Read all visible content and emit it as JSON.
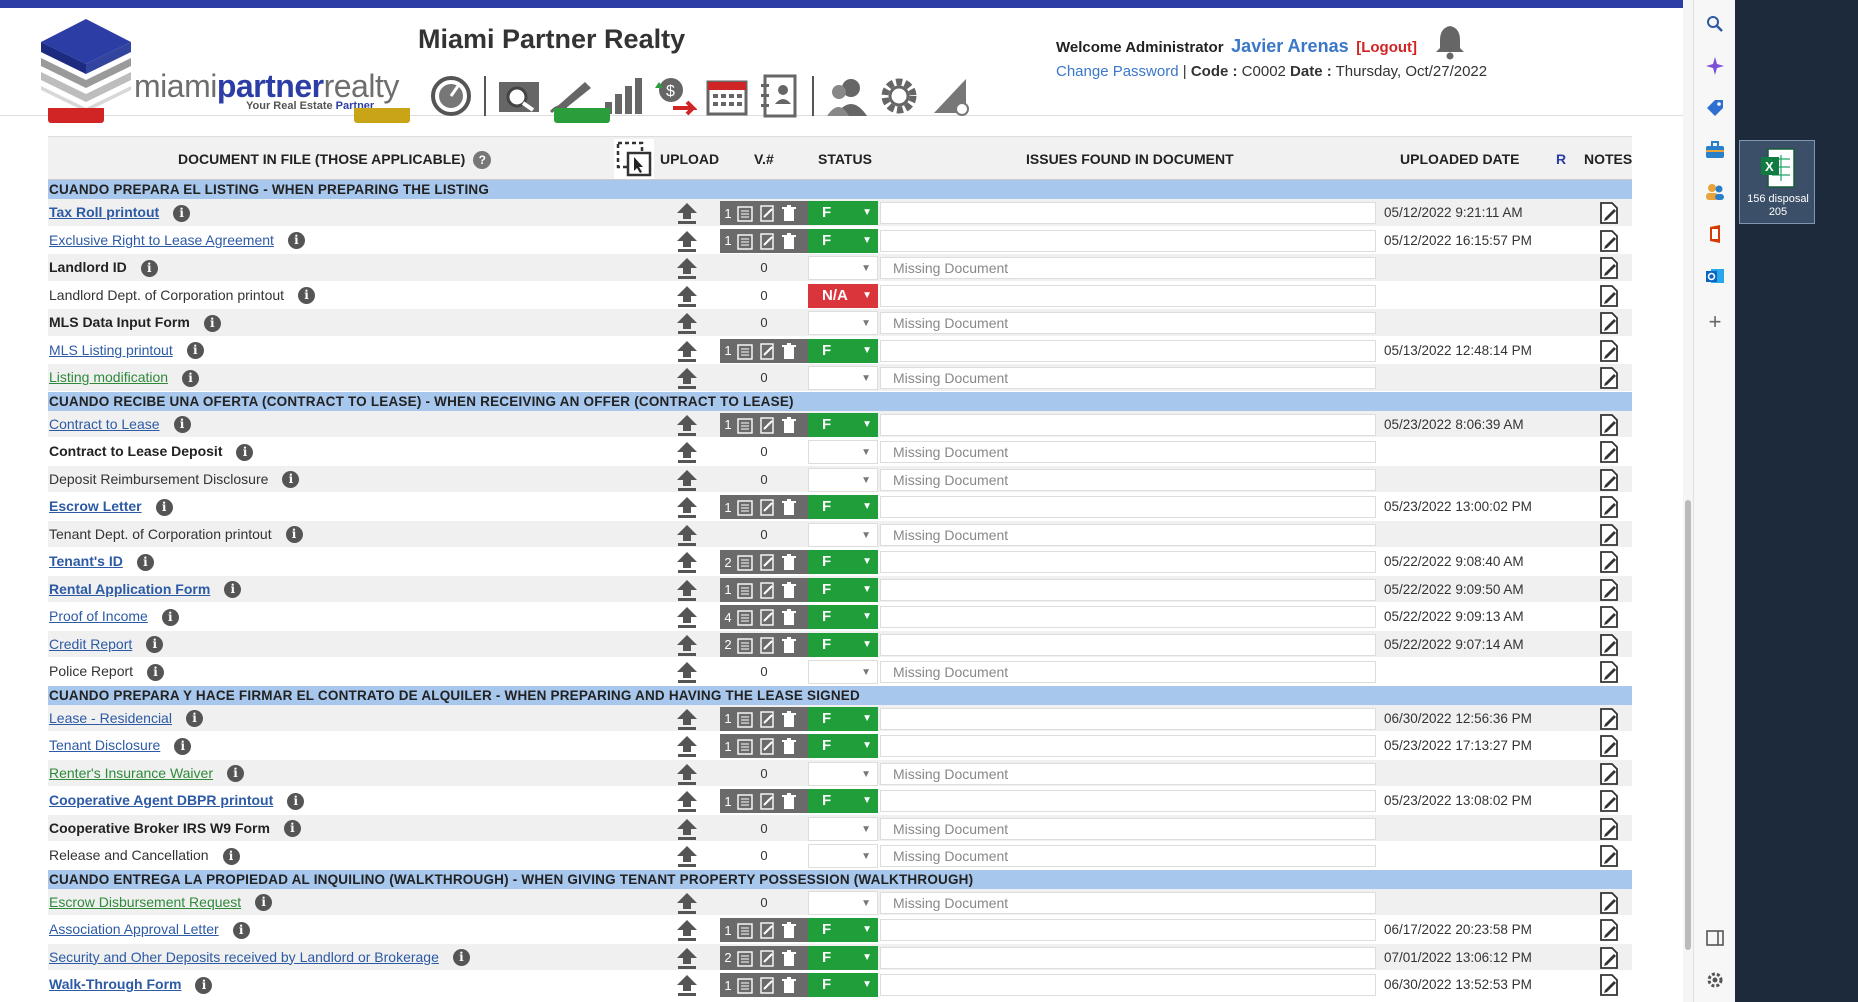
{
  "app": {
    "title": "Miami Partner Realty",
    "logo_text_a": "miami",
    "logo_text_b": "partner",
    "logo_text_c": "realty",
    "logo_tag_a": "Your Real Estate ",
    "logo_tag_b": "Partner"
  },
  "user": {
    "welcome": "Welcome Administrator",
    "name": "Javier Arenas",
    "logout": "[Logout]",
    "change_password": "Change Password",
    "code_label": "Code :",
    "code": "C0002",
    "date_label": "Date :",
    "date": "Thursday, Oct/27/2022"
  },
  "toolbar": [
    "speedometer-icon",
    "search-doc-icon",
    "signature-icon",
    "bar-chart-icon",
    "money-transfer-icon",
    "calendar-icon",
    "contacts-icon",
    "users-icon",
    "gear-icon",
    "settings-triangle-icon"
  ],
  "table": {
    "headers": {
      "document": "DOCUMENT IN FILE (THOSE APPLICABLE)",
      "help": "?",
      "upload": "UPLOAD",
      "version": "V.#",
      "status": "STATUS",
      "issues": "ISSUES FOUND IN DOCUMENT",
      "uploaded": "UPLOADED DATE",
      "r": "R",
      "notes": "NOTES"
    },
    "sections": [
      {
        "title": "CUANDO PREPARA EL LISTING - WHEN PREPARING THE LISTING",
        "rows": [
          {
            "name": "Tax Roll printout",
            "style": "link bold",
            "version": "1",
            "has_doc": true,
            "status": "F",
            "status_color": "green",
            "issues": "",
            "uploaded": "05/12/2022 9:21:11 AM"
          },
          {
            "name": "Exclusive Right to Lease Agreement",
            "style": "link",
            "version": "1",
            "has_doc": true,
            "status": "F",
            "status_color": "green",
            "issues": "",
            "uploaded": "05/12/2022 16:15:57 PM"
          },
          {
            "name": "Landlord ID",
            "style": "bold",
            "version": "0",
            "has_doc": false,
            "status": "",
            "status_color": "empty",
            "issues": "Missing Document",
            "uploaded": ""
          },
          {
            "name": "Landlord Dept. of Corporation printout",
            "style": "plain",
            "version": "0",
            "has_doc": false,
            "status": "N/A",
            "status_color": "red",
            "issues": "",
            "uploaded": ""
          },
          {
            "name": "MLS Data Input Form",
            "style": "bold",
            "version": "0",
            "has_doc": false,
            "status": "",
            "status_color": "empty",
            "issues": "Missing Document",
            "uploaded": ""
          },
          {
            "name": "MLS Listing printout",
            "style": "link",
            "version": "1",
            "has_doc": true,
            "status": "F",
            "status_color": "green",
            "issues": "",
            "uploaded": "05/13/2022 12:48:14 PM"
          },
          {
            "name": "Listing modification",
            "style": "link green",
            "version": "0",
            "has_doc": false,
            "status": "",
            "status_color": "empty",
            "issues": "Missing Document",
            "uploaded": ""
          }
        ]
      },
      {
        "title": "CUANDO RECIBE UNA OFERTA (CONTRACT TO LEASE) - WHEN RECEIVING AN OFFER (CONTRACT TO LEASE)",
        "rows": [
          {
            "name": "Contract to Lease",
            "style": "link",
            "version": "1",
            "has_doc": true,
            "status": "F",
            "status_color": "green",
            "issues": "",
            "uploaded": "05/23/2022 8:06:39 AM"
          },
          {
            "name": "Contract to Lease Deposit",
            "style": "bold",
            "version": "0",
            "has_doc": false,
            "status": "",
            "status_color": "empty",
            "issues": "Missing Document",
            "uploaded": ""
          },
          {
            "name": "Deposit Reimbursement Disclosure",
            "style": "plain",
            "version": "0",
            "has_doc": false,
            "status": "",
            "status_color": "empty",
            "issues": "Missing Document",
            "uploaded": ""
          },
          {
            "name": "Escrow Letter",
            "style": "link bold",
            "version": "1",
            "has_doc": true,
            "status": "F",
            "status_color": "green",
            "issues": "",
            "uploaded": "05/23/2022 13:00:02 PM"
          },
          {
            "name": "Tenant Dept. of Corporation printout",
            "style": "plain",
            "version": "0",
            "has_doc": false,
            "status": "",
            "status_color": "empty",
            "issues": "Missing Document",
            "uploaded": ""
          },
          {
            "name": "Tenant's ID",
            "style": "link bold",
            "version": "2",
            "has_doc": true,
            "status": "F",
            "status_color": "green",
            "issues": "",
            "uploaded": "05/22/2022 9:08:40 AM"
          },
          {
            "name": "Rental Application Form",
            "style": "link bold",
            "version": "1",
            "has_doc": true,
            "status": "F",
            "status_color": "green",
            "issues": "",
            "uploaded": "05/22/2022 9:09:50 AM"
          },
          {
            "name": "Proof of Income",
            "style": "link",
            "version": "4",
            "has_doc": true,
            "status": "F",
            "status_color": "green",
            "issues": "",
            "uploaded": "05/22/2022 9:09:13 AM"
          },
          {
            "name": "Credit Report",
            "style": "link",
            "version": "2",
            "has_doc": true,
            "status": "F",
            "status_color": "green",
            "issues": "",
            "uploaded": "05/22/2022 9:07:14 AM"
          },
          {
            "name": "Police Report",
            "style": "plain",
            "version": "0",
            "has_doc": false,
            "status": "",
            "status_color": "empty",
            "issues": "Missing Document",
            "uploaded": ""
          }
        ]
      },
      {
        "title": "CUANDO PREPARA Y HACE FIRMAR EL CONTRATO DE ALQUILER - WHEN PREPARING AND HAVING THE LEASE SIGNED",
        "rows": [
          {
            "name": "Lease - Residencial",
            "style": "link",
            "version": "1",
            "has_doc": true,
            "status": "F",
            "status_color": "green",
            "issues": "",
            "uploaded": "06/30/2022 12:56:36 PM"
          },
          {
            "name": "Tenant Disclosure",
            "style": "link",
            "version": "1",
            "has_doc": true,
            "status": "F",
            "status_color": "green",
            "issues": "",
            "uploaded": "05/23/2022 17:13:27 PM"
          },
          {
            "name": "Renter's Insurance Waiver",
            "style": "link green",
            "version": "0",
            "has_doc": false,
            "status": "",
            "status_color": "empty",
            "issues": "Missing Document",
            "uploaded": ""
          },
          {
            "name": "Cooperative Agent DBPR printout",
            "style": "link bold",
            "version": "1",
            "has_doc": true,
            "status": "F",
            "status_color": "green",
            "issues": "",
            "uploaded": "05/23/2022 13:08:02 PM"
          },
          {
            "name": "Cooperative Broker IRS W9 Form",
            "style": "bold",
            "version": "0",
            "has_doc": false,
            "status": "",
            "status_color": "empty",
            "issues": "Missing Document",
            "uploaded": ""
          },
          {
            "name": "Release and Cancellation",
            "style": "plain",
            "version": "0",
            "has_doc": false,
            "status": "",
            "status_color": "empty",
            "issues": "Missing Document",
            "uploaded": ""
          }
        ]
      },
      {
        "title": "CUANDO ENTREGA LA PROPIEDAD AL INQUILINO (WALKTHROUGH) - WHEN GIVING TENANT PROPERTY POSSESSION (WALKTHROUGH)",
        "rows": [
          {
            "name": "Escrow Disbursement Request",
            "style": "link green",
            "version": "0",
            "has_doc": false,
            "status": "",
            "status_color": "empty",
            "issues": "Missing Document",
            "uploaded": ""
          },
          {
            "name": "Association Approval Letter",
            "style": "link",
            "version": "1",
            "has_doc": true,
            "status": "F",
            "status_color": "green",
            "issues": "",
            "uploaded": "06/17/2022 20:23:58 PM"
          },
          {
            "name": "Security and Oher Deposits received by Landlord or Brokerage",
            "style": "link",
            "version": "2",
            "has_doc": true,
            "status": "F",
            "status_color": "green",
            "issues": "",
            "uploaded": "07/01/2022 13:06:12 PM"
          },
          {
            "name": "Walk-Through Form",
            "style": "link bold",
            "version": "1",
            "has_doc": true,
            "status": "F",
            "status_color": "green",
            "issues": "",
            "uploaded": "06/30/2022 13:52:53 PM"
          }
        ]
      }
    ]
  },
  "desktop": {
    "file_label_1": "156 disposal",
    "file_label_2": "205"
  },
  "colors": {
    "brand": "#2c3ea6",
    "section": "#a8c7ec",
    "status_green": "#1f9e3a",
    "status_red": "#d9353b",
    "link": "#2d5aa5"
  }
}
